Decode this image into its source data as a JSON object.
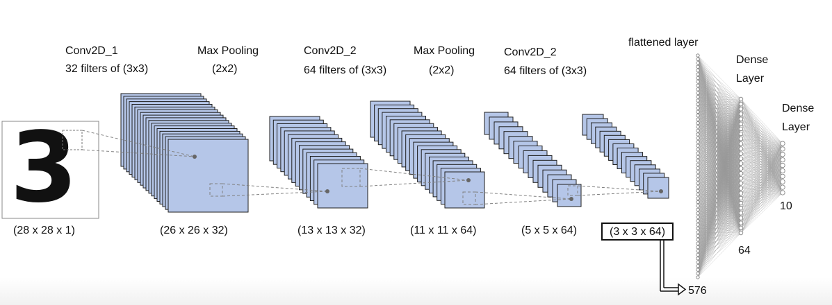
{
  "layer_labels": {
    "conv1_title": "Conv2D_1",
    "conv1_sub": "32 filters of (3x3)",
    "pool1_title": "Max Pooling",
    "pool1_sub": "(2x2)",
    "conv2_title": "Conv2D_2",
    "conv2_sub": "64 filters of (3x3)",
    "pool2_title": "Max Pooling",
    "pool2_sub": "(2x2)",
    "conv3_title": "Conv2D_2",
    "conv3_sub": "64 filters of (3x3)",
    "flattened_title": "flattened layer",
    "dense1_title_line1": "Dense",
    "dense1_title_line2": "Layer",
    "dense2_title_line1": "Dense",
    "dense2_title_line2": "Layer"
  },
  "dimensions": {
    "input": "(28 x 28 x 1)",
    "conv1": "(26 x 26 x 32)",
    "pool1": "(13 x 13 x 32)",
    "conv2": "(11 x 11 x 64)",
    "conv3": "(5 x 5 x 64)",
    "flattened": "(3 x 3 x 64)"
  },
  "unit_counts": {
    "flattened": "576",
    "dense1": "64",
    "dense2": "10"
  },
  "input_digit": "3",
  "colors": {
    "feature_map_fill": "#b5c6e8",
    "feature_map_stroke": "#1e1e1e",
    "connection_line": "#808080",
    "neuron_stroke": "#777777"
  }
}
